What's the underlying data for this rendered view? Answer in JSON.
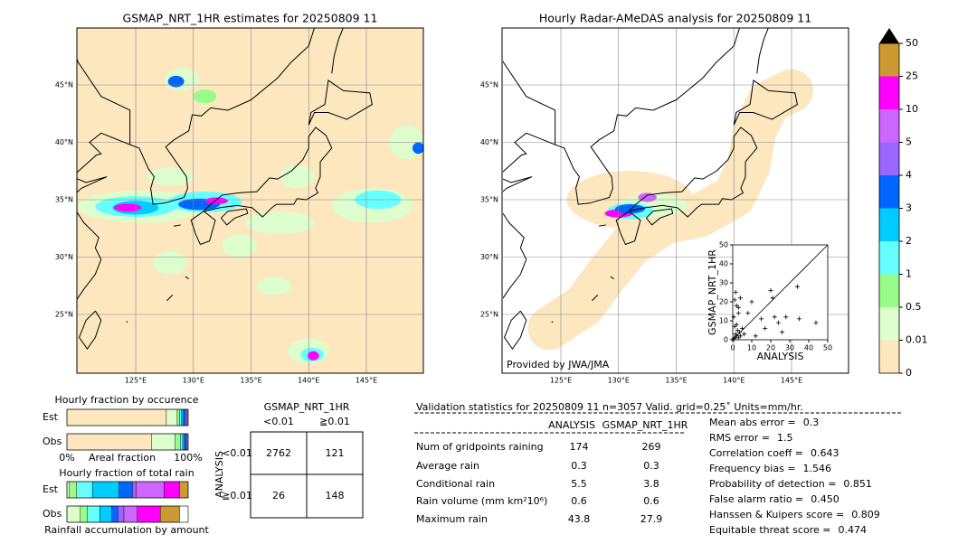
{
  "maps": [
    {
      "title": "GSMAP_NRT_1HR estimates for 20250809 11"
    },
    {
      "title": "Hourly Radar-AMeDAS analysis for 20250809 11",
      "credit": "Provided by JWA/JMA"
    }
  ],
  "lat_labels": [
    "45°N",
    "40°N",
    "35°N",
    "30°N",
    "25°N"
  ],
  "lon_labels": [
    "125°E",
    "130°E",
    "135°E",
    "140°E",
    "145°E"
  ],
  "colorbar": {
    "levels": [
      0,
      0.01,
      0.5,
      1,
      2,
      3,
      4,
      5,
      10,
      25,
      50
    ],
    "colors": [
      "#fde7bf",
      "#ddfdcc",
      "#98fc8a",
      "#66ffff",
      "#00ccff",
      "#0066ff",
      "#9966ff",
      "#cc66ff",
      "#ff00ff",
      "#cc9933"
    ],
    "extend_color": "#000000"
  },
  "chart_data": [
    {
      "type": "scatter",
      "xlabel": "ANALYSIS",
      "ylabel": "GSMAP_NRT_1HR",
      "x": [
        0.5,
        1,
        1.5,
        2,
        2.5,
        3,
        3.5,
        4,
        1,
        2,
        0.5,
        3,
        5,
        2,
        1,
        4,
        6,
        8,
        10,
        12,
        15,
        17,
        20,
        21,
        22,
        24,
        26,
        28,
        34,
        35,
        43.8,
        1.5,
        3
      ],
      "y": [
        0.5,
        1,
        3,
        2,
        5,
        1,
        4,
        2,
        7,
        8,
        12,
        14,
        6,
        18,
        21,
        22,
        3,
        14,
        20,
        2,
        11,
        6,
        26,
        22,
        12,
        9,
        4,
        12,
        28,
        11,
        9,
        25,
        17
      ],
      "xlim": [
        0,
        50
      ],
      "ylim": [
        0,
        50
      ],
      "xticks": [
        0,
        10,
        20,
        30,
        40,
        50
      ],
      "yticks": [
        0,
        10,
        20,
        30,
        40,
        50
      ],
      "color": "#000000"
    },
    {
      "type": "fraction",
      "title": "Hourly fraction by occurence",
      "categories": [
        "Est",
        "Obs"
      ],
      "segments": [
        [
          82,
          9,
          2,
          1.5,
          1.5,
          1.5,
          1.5,
          1
        ],
        [
          70,
          19,
          4.5,
          2,
          1.5,
          1.5,
          1.5
        ]
      ],
      "colors": [
        "#fde7bf",
        "#ddfdcc",
        "#98fc8a",
        "#66ffff",
        "#00ccff",
        "#0066ff",
        "#9966ff",
        "#cc66ff"
      ],
      "xlabel": "Areal fraction",
      "xlim": [
        0,
        100
      ],
      "xticks": [
        {
          "value": 0,
          "label": "0%"
        },
        {
          "value": 100,
          "label": "100%"
        }
      ]
    },
    {
      "type": "fraction",
      "title": "Hourly fraction of total rain",
      "categories": [
        "Est",
        "Obs"
      ],
      "segments": [
        [
          2,
          6,
          13,
          22,
          11,
          3,
          23,
          13,
          7
        ],
        [
          11,
          6,
          10,
          10,
          5,
          5,
          11,
          19,
          16
        ]
      ],
      "colors": [
        "#ddfdcc",
        "#98fc8a",
        "#66ffff",
        "#00ccff",
        "#0066ff",
        "#9966ff",
        "#cc66ff",
        "#ff00ff",
        "#cc9933"
      ],
      "xlabel": "Rainfall accumulation by amount",
      "xlim": [
        0,
        100
      ]
    }
  ],
  "contingency": {
    "title": "GSMAP_NRT_1HR",
    "columns": [
      "<0.01",
      "≧0.01"
    ],
    "row_title": "ANALYSIS",
    "rows": [
      "<0.01",
      "≧0.01"
    ],
    "cells": [
      [
        2762,
        121
      ],
      [
        26,
        148
      ]
    ]
  },
  "validation": {
    "header": "Validation statistics for 20250809 11  n=3057 Valid. grid=0.25˚ Units=mm/hr.",
    "columns": [
      "ANALYSIS",
      "GSMAP_NRT_1HR"
    ],
    "rows": [
      {
        "label": "Num of gridpoints raining",
        "values": [
          174,
          269
        ]
      },
      {
        "label": "Average rain",
        "values": [
          0.3,
          0.3
        ]
      },
      {
        "label": "Conditional rain",
        "values": [
          5.5,
          3.8
        ]
      },
      {
        "label": "Rain volume (mm km²10⁶)",
        "values": [
          0.6,
          0.6
        ]
      },
      {
        "label": "Maximum rain",
        "values": [
          43.8,
          27.9
        ]
      }
    ],
    "scores": [
      {
        "label": "Mean abs error =",
        "value": 0.3
      },
      {
        "label": "RMS error =",
        "value": 1.5
      },
      {
        "label": "Correlation coeff =",
        "value": 0.643
      },
      {
        "label": "Frequency bias =",
        "value": 1.546
      },
      {
        "label": "Probability of detection =",
        "value": 0.851
      },
      {
        "label": "False alarm ratio =",
        "value": {
          "value": 0.45,
          "label": "0.450"
        }
      },
      {
        "label": "Hanssen & Kuipers score =",
        "value": 0.809
      },
      {
        "label": "Equitable threat score =",
        "value": 0.474
      }
    ]
  }
}
